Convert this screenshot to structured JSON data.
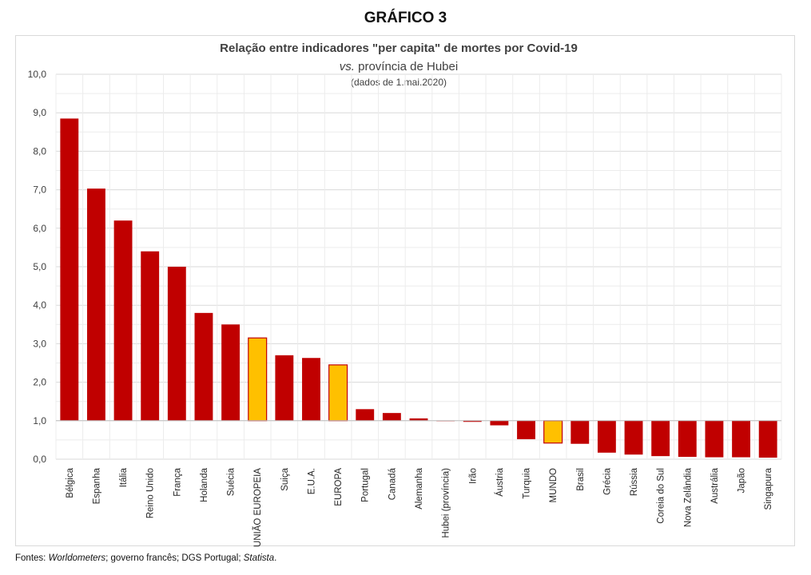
{
  "heading": "GRÁFICO 3",
  "source": {
    "parts": [
      {
        "text": "Fontes: ",
        "italic": false
      },
      {
        "text": "Worldometers",
        "italic": true
      },
      {
        "text": "; governo francês; DGS Portugal; ",
        "italic": false
      },
      {
        "text": "Statista",
        "italic": true
      },
      {
        "text": ".",
        "italic": false
      }
    ]
  },
  "chart_data": {
    "type": "bar",
    "title": "Relação entre indicadores \"per capita\" de mortes por Covid-19",
    "subtitle_italic": "vs.",
    "subtitle_rest": " província de Hubei",
    "note": "(dados de 1.mai.2020)",
    "baseline": 1.0,
    "ylim": [
      0,
      10
    ],
    "yticks": [
      "0,0",
      "1,0",
      "2,0",
      "3,0",
      "4,0",
      "5,0",
      "6,0",
      "7,0",
      "8,0",
      "9,0",
      "10,0"
    ],
    "grid": true,
    "colors": {
      "default": "#c00000",
      "highlight": "#ffc000",
      "highlight_border": "#c00000"
    },
    "categories": [
      "Bélgica",
      "Espanha",
      "Itália",
      "Reino Unido",
      "França",
      "Holanda",
      "Suécia",
      "UNIÃO EUROPEIA",
      "Suiça",
      "E.U.A.",
      "EUROPA",
      "Portugal",
      "Canadá",
      "Alemanha",
      "Hubei (província)",
      "Irão",
      "Áustria",
      "Turquia",
      "MUNDO",
      "Brasil",
      "Grécia",
      "Rússia",
      "Coreia do Sul",
      "Nova Zelândia",
      "Austrália",
      "Japão",
      "Singapura"
    ],
    "values": [
      8.85,
      7.03,
      6.2,
      5.4,
      5.0,
      3.8,
      3.5,
      3.15,
      2.7,
      2.63,
      2.45,
      1.3,
      1.2,
      1.06,
      1.0,
      0.97,
      0.88,
      0.52,
      0.42,
      0.4,
      0.17,
      0.12,
      0.08,
      0.06,
      0.05,
      0.05,
      0.04
    ],
    "highlight": [
      "UNIÃO EUROPEIA",
      "EUROPA",
      "MUNDO"
    ]
  }
}
